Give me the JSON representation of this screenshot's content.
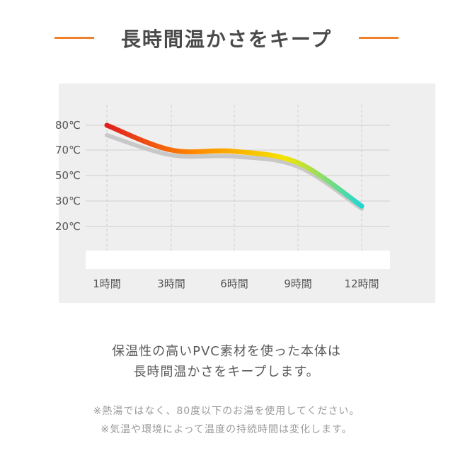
{
  "header": {
    "title": "長時間温かさをキープ",
    "accent_color": "#f0812a"
  },
  "chart_data": {
    "type": "line",
    "x_categories": [
      "1時間",
      "3時間",
      "6時間",
      "9時間",
      "12時間"
    ],
    "y_tick_labels": [
      "80℃",
      "70℃",
      "50℃",
      "30℃",
      "20℃"
    ],
    "series": [
      {
        "style": "gradient",
        "gradient_colors": [
          "#e02020",
          "#ff8a00",
          "#f5e400",
          "#1fd6d6"
        ],
        "points": [
          [
            "1時間",
            "80℃"
          ],
          [
            "3時間",
            "70℃"
          ],
          [
            "6時間",
            "69℃"
          ],
          [
            "9時間",
            "60℃"
          ],
          [
            "12時間",
            "28℃"
          ]
        ]
      },
      {
        "style": "shadow",
        "color": "#c8c8c8",
        "points": [
          [
            "1時間",
            "76℃"
          ],
          [
            "3時間",
            "66℃"
          ],
          [
            "6時間",
            "65℃"
          ],
          [
            "9時間",
            "57℃"
          ],
          [
            "12時間",
            "27℃"
          ]
        ]
      }
    ],
    "grid": true
  },
  "description": {
    "line1": "保温性の高いPVC素材を使った本体は",
    "line2": "長時間温かさをキープします。"
  },
  "notes": {
    "line1": "※熱湯ではなく、80度以下のお湯を使用してください。",
    "line2": "※気温や環境によって温度の持続時間は変化します。"
  }
}
